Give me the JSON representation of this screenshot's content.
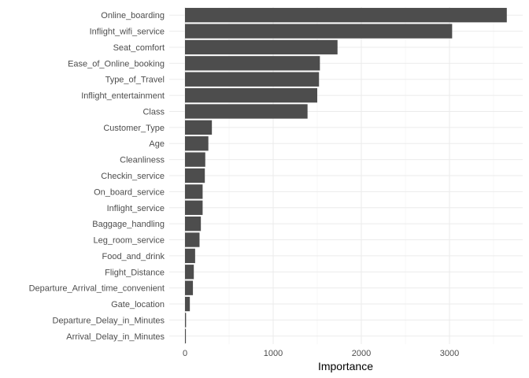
{
  "chart_data": {
    "type": "bar",
    "orientation": "horizontal",
    "xlabel": "Importance",
    "ylabel": "",
    "title": "",
    "xlim": [
      0,
      3720
    ],
    "x_ticks": [
      0,
      1000,
      2000,
      3000
    ],
    "x_minor_ticks": [
      500,
      1500,
      2500,
      3500
    ],
    "grid": true,
    "bar_color": "#4d4d4d",
    "categories": [
      "Online_boarding",
      "Inflight_wifi_service",
      "Seat_comfort",
      "Ease_of_Online_booking",
      "Type_of_Travel",
      "Inflight_entertainment",
      "Class",
      "Customer_Type",
      "Age",
      "Cleanliness",
      "Checkin_service",
      "On_board_service",
      "Inflight_service",
      "Baggage_handling",
      "Leg_room_service",
      "Food_and_drink",
      "Flight_Distance",
      "Departure_Arrival_time_convenient",
      "Gate_location",
      "Departure_Delay_in_Minutes",
      "Arrival_Delay_in_Minutes"
    ],
    "values": [
      3650,
      3030,
      1730,
      1530,
      1520,
      1500,
      1390,
      305,
      265,
      230,
      225,
      200,
      200,
      180,
      165,
      115,
      100,
      90,
      55,
      12,
      10
    ]
  }
}
